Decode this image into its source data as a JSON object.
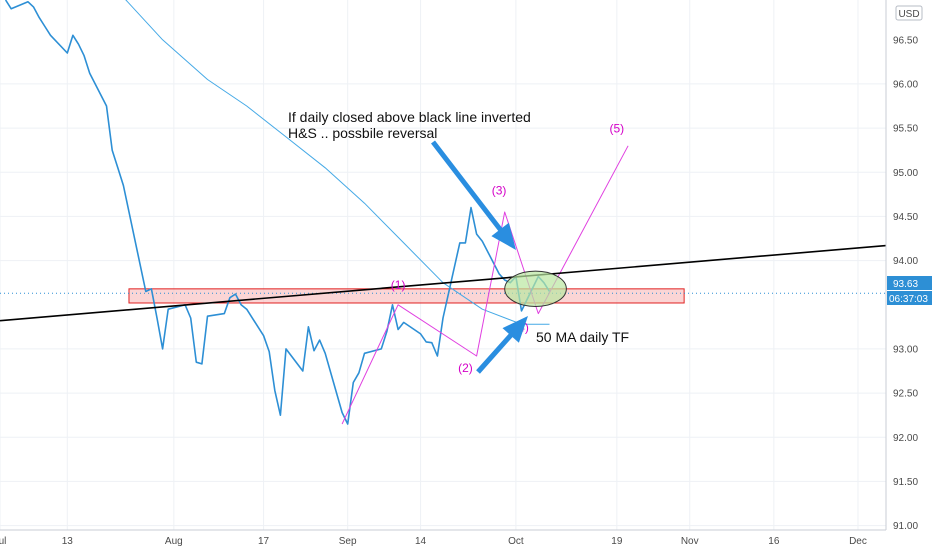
{
  "colors": {
    "price": "#2d8fd5",
    "ma": "#45a9e6",
    "wave": "#e040e0",
    "wave_label": "#d400c8",
    "neckline": "#000000",
    "zone_fill": "#f7b3b3",
    "zone_stroke": "#e02020",
    "ellipse_fill": "#b9e7a0",
    "arrow": "#2a8ee0",
    "grid": "#eef1f5",
    "axis_bg": "#ffffff",
    "price_tag_bg": "#2d8fd5",
    "time_tag_bg": "#2d8fd5"
  },
  "chart_data": {
    "type": "line",
    "currency_badge": "USD",
    "x_ticks": [
      "Jul",
      "13",
      "Aug",
      "17",
      "Sep",
      "14",
      "Oct",
      "19",
      "Nov",
      "16",
      "Dec"
    ],
    "y_ticks": [
      "96.00",
      "95.50",
      "95.00",
      "94.50",
      "94.00",
      "93.00",
      "92.50",
      "92.00",
      "91.50",
      "91.00"
    ],
    "y_top_partial_label": "96.50",
    "ylim": [
      90.95,
      96.95
    ],
    "grid": true,
    "price_tag": "93.63",
    "time_tag": "06:37:03",
    "current_price": 93.63,
    "series": [
      {
        "x": [
          "2020-07-02",
          "2020-07-03",
          "2020-07-06",
          "2020-07-07",
          "2020-07-08",
          "2020-07-09",
          "2020-07-10",
          "2020-07-13",
          "2020-07-14",
          "2020-07-15",
          "2020-07-16",
          "2020-07-17",
          "2020-07-20",
          "2020-07-21",
          "2020-07-22",
          "2020-07-23",
          "2020-07-24",
          "2020-07-27",
          "2020-07-28",
          "2020-07-29",
          "2020-07-30",
          "2020-07-31",
          "2020-08-03",
          "2020-08-04",
          "2020-08-05",
          "2020-08-06",
          "2020-08-07",
          "2020-08-10",
          "2020-08-11",
          "2020-08-12",
          "2020-08-13",
          "2020-08-14",
          "2020-08-17",
          "2020-08-18",
          "2020-08-19",
          "2020-08-20",
          "2020-08-21",
          "2020-08-24",
          "2020-08-25",
          "2020-08-26",
          "2020-08-27",
          "2020-08-28",
          "2020-08-31",
          "2020-09-01",
          "2020-09-02",
          "2020-09-03",
          "2020-09-04",
          "2020-09-07",
          "2020-09-08",
          "2020-09-09",
          "2020-09-10",
          "2020-09-11",
          "2020-09-14",
          "2020-09-15",
          "2020-09-16",
          "2020-09-17",
          "2020-09-18",
          "2020-09-21",
          "2020-09-22",
          "2020-09-23",
          "2020-09-24",
          "2020-09-25",
          "2020-09-28",
          "2020-09-29",
          "2020-09-30",
          "2020-10-01",
          "2020-10-02",
          "2020-10-05",
          "2020-10-06",
          "2020-10-07"
        ],
        "values": [
          96.95,
          96.85,
          96.93,
          96.87,
          96.75,
          96.65,
          96.55,
          96.35,
          96.55,
          96.45,
          96.32,
          96.12,
          95.75,
          95.25,
          95.05,
          94.85,
          94.55,
          93.65,
          93.68,
          93.35,
          93.0,
          93.45,
          93.5,
          93.35,
          92.85,
          92.83,
          93.37,
          93.4,
          93.58,
          93.62,
          93.5,
          93.45,
          93.15,
          92.97,
          92.53,
          92.25,
          93.0,
          92.75,
          93.25,
          92.98,
          93.1,
          92.95,
          92.28,
          92.15,
          92.62,
          92.73,
          92.95,
          93.0,
          93.2,
          93.5,
          93.22,
          93.3,
          93.17,
          93.08,
          93.07,
          92.92,
          93.35,
          94.2,
          94.2,
          94.6,
          94.3,
          94.22,
          93.85,
          93.78,
          93.75,
          93.82,
          93.43,
          93.82,
          93.75,
          93.65
        ]
      },
      {
        "name": "50 MA",
        "x": [
          "2020-07-22",
          "2020-07-30",
          "2020-08-07",
          "2020-08-14",
          "2020-08-21",
          "2020-08-28",
          "2020-09-04",
          "2020-09-11",
          "2020-09-18",
          "2020-09-25",
          "2020-10-02",
          "2020-10-07"
        ],
        "values": [
          97.05,
          96.5,
          96.05,
          95.75,
          95.4,
          95.05,
          94.65,
          94.2,
          93.75,
          93.45,
          93.28,
          93.28
        ]
      },
      {
        "x": [
          "2020-08-31",
          "2020-09-10",
          "2020-09-24",
          "2020-09-29",
          "2020-10-05",
          "2020-10-21"
        ],
        "values": [
          92.15,
          93.5,
          92.92,
          94.55,
          93.4,
          95.3
        ]
      }
    ],
    "wave_labels": [
      {
        "label": "(1)",
        "x": "2020-09-10",
        "y": 93.68
      },
      {
        "label": "(2)",
        "x": "2020-09-22",
        "y": 92.74
      },
      {
        "label": "(3)",
        "x": "2020-09-28",
        "y": 94.75
      },
      {
        "label": "(4)",
        "x": "2020-10-02",
        "y": 93.2
      },
      {
        "label": "(5)",
        "x": "2020-10-19",
        "y": 95.45
      }
    ],
    "neckline": {
      "x": [
        "2020-07-01",
        "2020-12-06"
      ],
      "values": [
        93.32,
        94.17
      ]
    },
    "support_zone": {
      "x": [
        "2020-07-24",
        "2020-10-31"
      ],
      "y": [
        93.52,
        93.68
      ]
    },
    "highlight_ellipse": {
      "x": [
        "2020-09-29",
        "2020-10-10"
      ],
      "y": [
        93.48,
        93.88
      ]
    },
    "annotations": {
      "reversal_note_line1": "If daily closed above black line inverted",
      "reversal_note_line2": "H&S .. possbile reversal",
      "ma_note": "50 MA daily TF"
    }
  }
}
